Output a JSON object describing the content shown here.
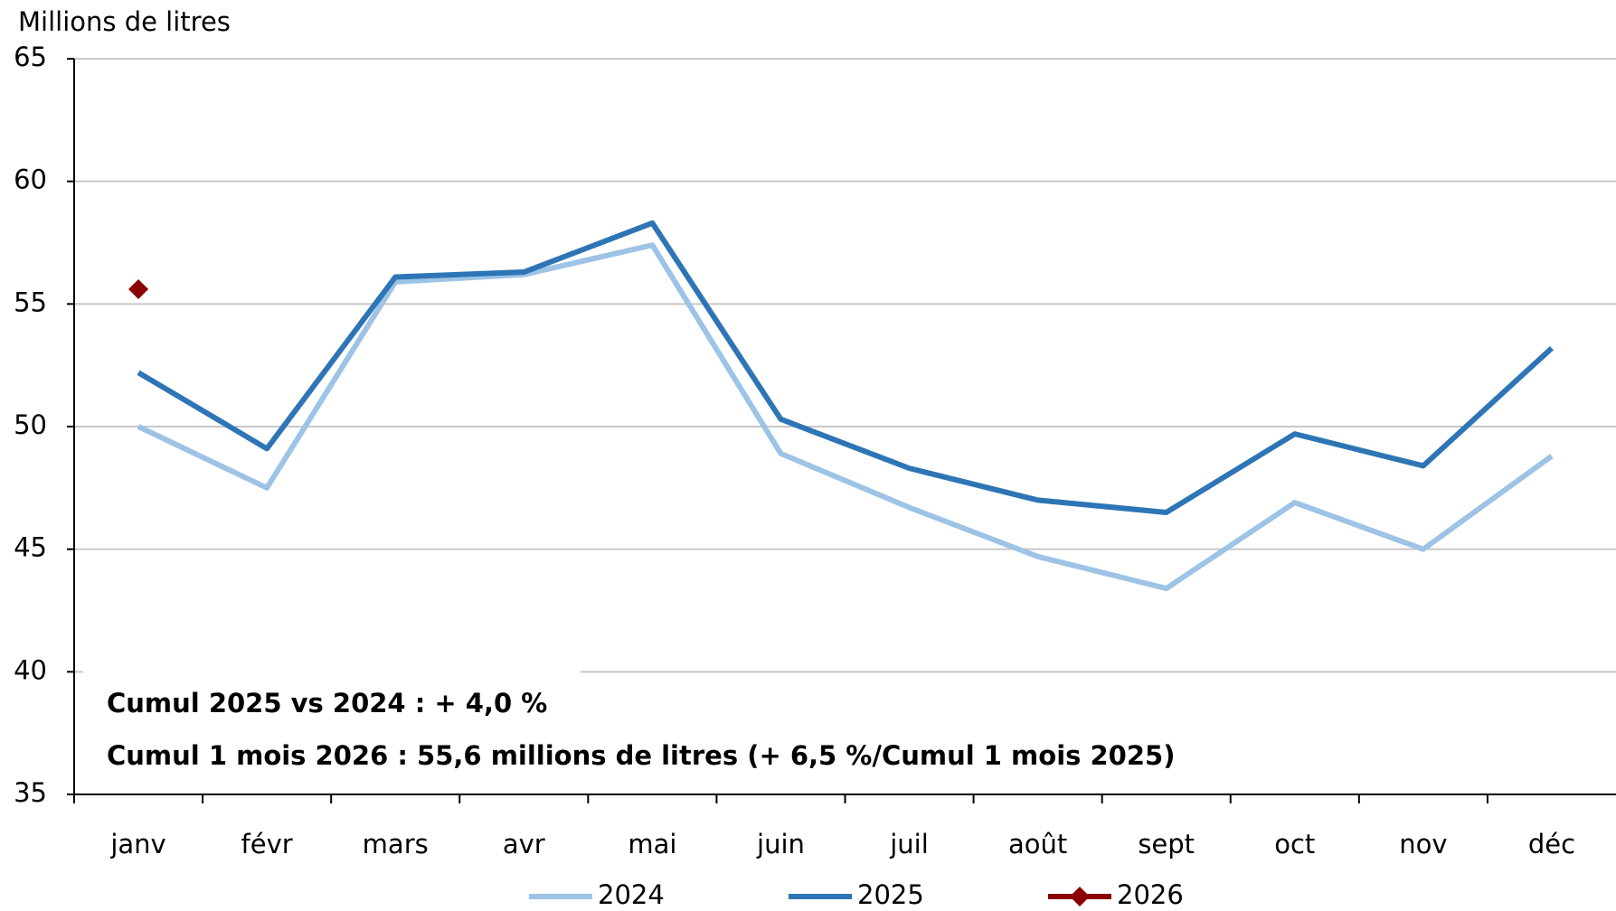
{
  "chart_data": {
    "type": "line",
    "y_label": "Millions de litres",
    "categories": [
      "janv",
      "févr",
      "mars",
      "avr",
      "mai",
      "juin",
      "juil",
      "août",
      "sept",
      "oct",
      "nov",
      "déc"
    ],
    "series": [
      {
        "name": "2024",
        "color": "#9dc3e6",
        "values": [
          50.0,
          47.5,
          55.9,
          56.2,
          57.4,
          48.9,
          46.7,
          44.7,
          43.4,
          46.9,
          45.0,
          48.8
        ]
      },
      {
        "name": "2025",
        "color": "#2e75b6",
        "values": [
          52.2,
          49.1,
          56.1,
          56.3,
          58.3,
          50.3,
          48.3,
          47.0,
          46.5,
          49.7,
          48.4,
          53.2
        ]
      },
      {
        "name": "2026",
        "color": "#8b0000",
        "marker": "diamond",
        "values": [
          55.6,
          null,
          null,
          null,
          null,
          null,
          null,
          null,
          null,
          null,
          null,
          null
        ]
      }
    ],
    "ylim": [
      35,
      65
    ],
    "yticks": [
      35,
      40,
      45,
      50,
      55,
      60,
      65
    ],
    "grid": true,
    "annotations": [
      {
        "text": "Cumul 2025 vs 2024 : + 4,0 %",
        "color": "#2b5c8a"
      },
      {
        "text": "Cumul 1 mois 2026 : 55,6 millions de litres (+ 6,5 %/Cumul 1 mois 2025)",
        "color": "#8b1010"
      }
    ]
  }
}
